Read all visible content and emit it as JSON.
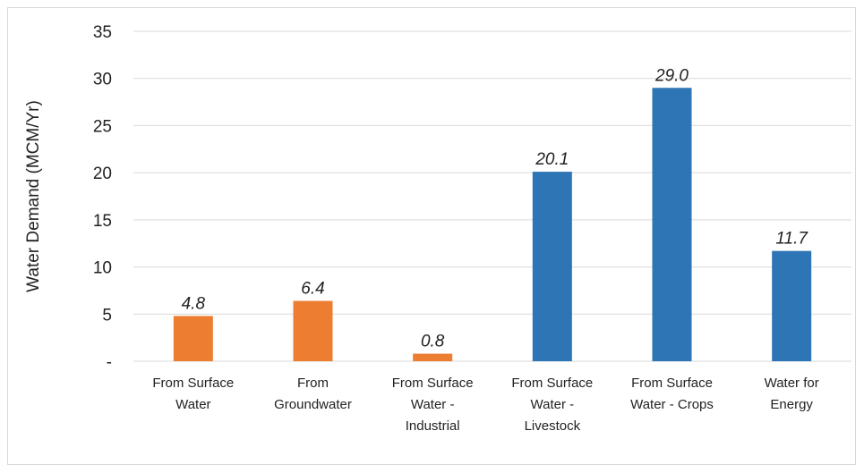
{
  "chart_data": {
    "type": "bar",
    "title": "",
    "xlabel": "",
    "ylabel": "Water Demand (MCM/Yr)",
    "ylim": [
      0,
      35
    ],
    "yticks": [
      {
        "value": 0,
        "label": "-"
      },
      {
        "value": 5,
        "label": "5"
      },
      {
        "value": 10,
        "label": "10"
      },
      {
        "value": 15,
        "label": "15"
      },
      {
        "value": 20,
        "label": "20"
      },
      {
        "value": 25,
        "label": "25"
      },
      {
        "value": 30,
        "label": "30"
      },
      {
        "value": 35,
        "label": "35"
      }
    ],
    "grid": true,
    "legend": "none",
    "categories": [
      [
        "From Surface",
        "Water"
      ],
      [
        "From",
        "Groundwater"
      ],
      [
        "From Surface",
        "Water -",
        "Industrial"
      ],
      [
        "From Surface",
        "Water -",
        "Livestock"
      ],
      [
        "From Surface",
        "Water - Crops"
      ],
      [
        "Water for",
        "Energy"
      ]
    ],
    "values": [
      4.8,
      6.4,
      0.8,
      20.1,
      29.0,
      11.7
    ],
    "data_labels": [
      "4.8",
      "6.4",
      "0.8",
      "20.1",
      "29.0",
      "11.7"
    ],
    "colors": [
      "#ed7d31",
      "#ed7d31",
      "#ed7d31",
      "#2e75b6",
      "#2e75b6",
      "#2e75b6"
    ]
  }
}
